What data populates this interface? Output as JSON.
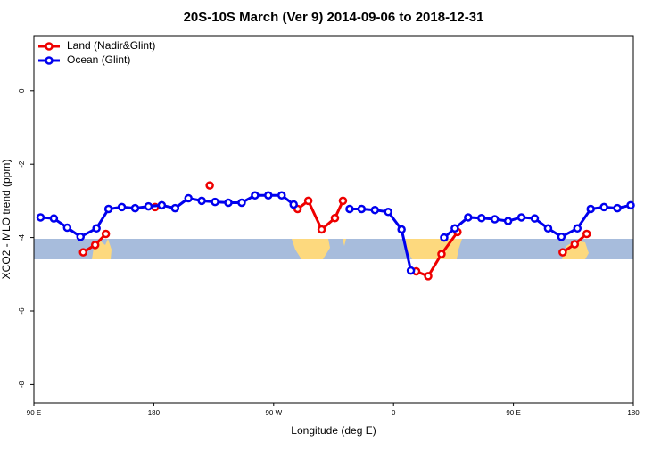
{
  "chart_data": {
    "type": "line",
    "title": "20S-10S March (Ver 9)   2014-09-06 to 2018-12-31",
    "x_label": "Longitude (deg E)",
    "y_label": "XCO2 - MLO trend (ppm)",
    "xlim": [
      90,
      540
    ],
    "xticks": [
      {
        "value": 90,
        "label": "90 E"
      },
      {
        "value": 180,
        "label": "180"
      },
      {
        "value": 270,
        "label": "90 W"
      },
      {
        "value": 360,
        "label": "0"
      },
      {
        "value": 450,
        "label": "90 E"
      },
      {
        "value": 540,
        "label": "180"
      }
    ],
    "ylim": [
      -8.5,
      1.5
    ],
    "yticks": [
      0,
      -2,
      -4,
      -6,
      -8
    ],
    "legend": "top-left",
    "series": [
      {
        "name": "Land (Nadir&Glint)",
        "color": "#ee0000",
        "x": [
          127,
          136,
          144,
          null,
          181,
          null,
          222,
          null,
          288,
          296,
          306,
          316,
          322,
          null,
          377,
          386,
          396,
          408,
          null,
          487,
          496,
          505
        ],
        "values": [
          -4.4,
          -4.2,
          -3.9,
          null,
          -3.17,
          null,
          -2.58,
          null,
          -3.22,
          -3.0,
          -3.78,
          -3.47,
          -3.0,
          null,
          -4.92,
          -5.05,
          -4.45,
          -3.85,
          null,
          -4.4,
          -4.18,
          -3.9
        ]
      },
      {
        "name": "Ocean (Glint)",
        "color": "#0000ee",
        "x": [
          95,
          105,
          115,
          125,
          137,
          146,
          156,
          166,
          176,
          186,
          196,
          206,
          216,
          226,
          236,
          246,
          256,
          266,
          276,
          285,
          null,
          327,
          336,
          346,
          356,
          366,
          373,
          null,
          398,
          406,
          416,
          426,
          436,
          446,
          456,
          466,
          476,
          486,
          498,
          508,
          518,
          528,
          538
        ],
        "values": [
          -3.45,
          -3.48,
          -3.73,
          -3.98,
          -3.75,
          -3.22,
          -3.17,
          -3.2,
          -3.15,
          -3.12,
          -3.2,
          -2.93,
          -3.0,
          -3.03,
          -3.05,
          -3.05,
          -2.85,
          -2.85,
          -2.85,
          -3.1,
          null,
          -3.22,
          -3.22,
          -3.25,
          -3.3,
          -3.78,
          -4.9,
          null,
          -4.0,
          -3.75,
          -3.45,
          -3.47,
          -3.5,
          -3.55,
          -3.45,
          -3.48,
          -3.75,
          -3.98,
          -3.75,
          -3.22,
          -3.17,
          -3.2,
          -3.12
        ]
      }
    ]
  }
}
